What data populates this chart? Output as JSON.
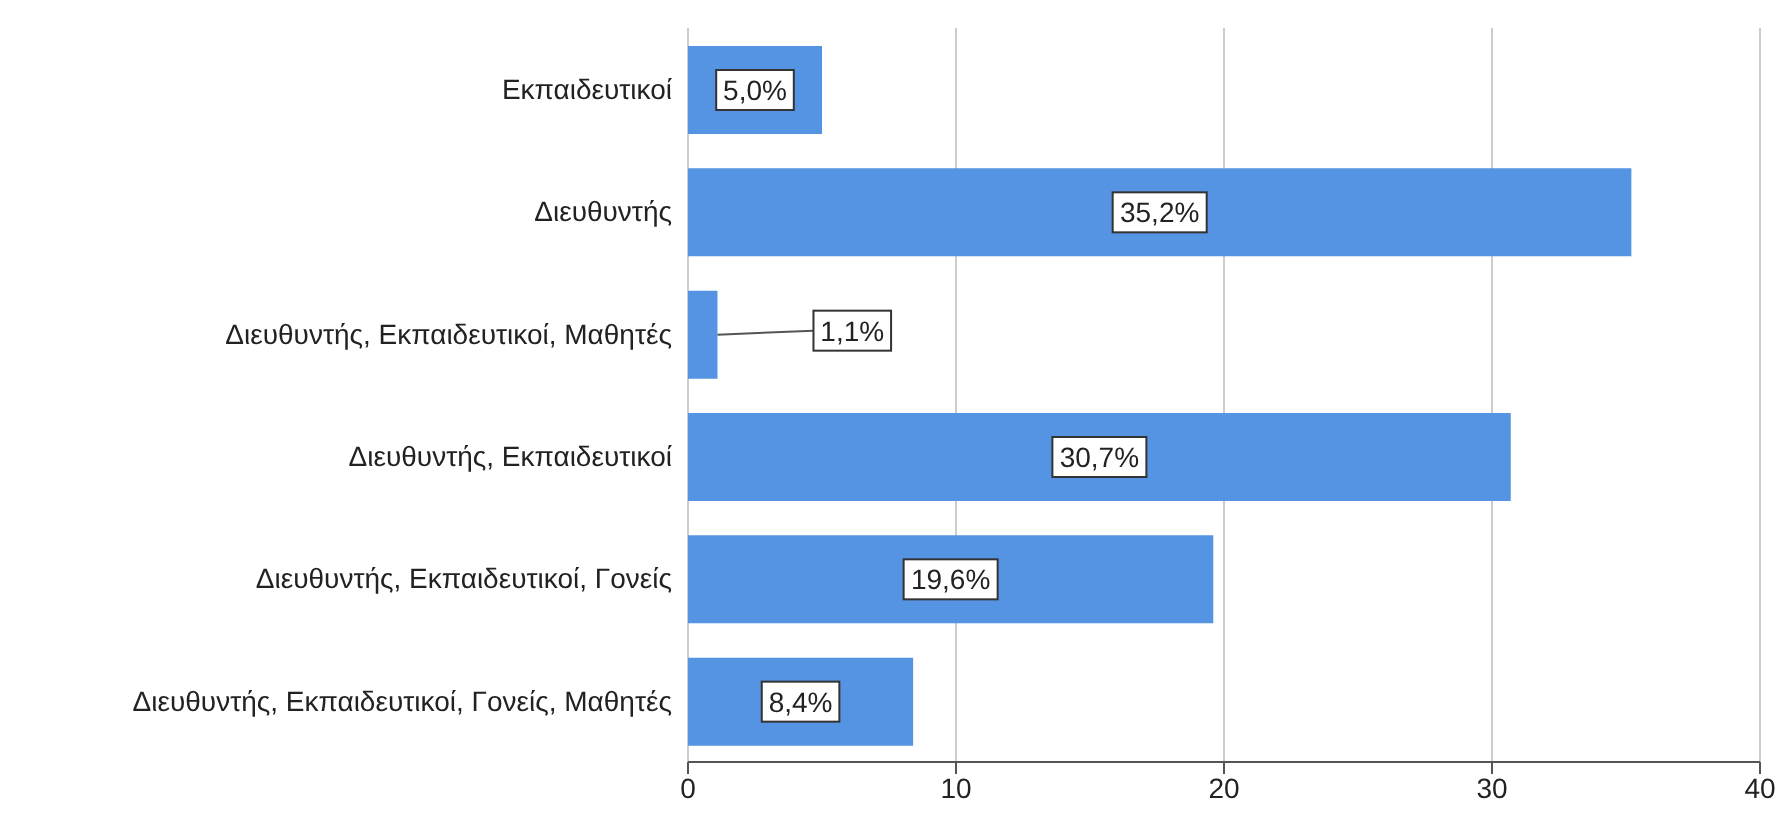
{
  "chart_data": {
    "type": "bar",
    "orientation": "horizontal",
    "categories": [
      "Εκπαιδευτικοί",
      "Διευθυντής",
      "Διευθυντής, Εκπαιδευτικοί, Μαθητές",
      "Διευθυντής, Εκπαιδευτικοί",
      "Διευθυντής, Εκπαιδευτικοί, Γονείς",
      "Διευθυντής, Εκπαιδευτικοί, Γονείς, Μαθητές"
    ],
    "values": [
      5.0,
      35.2,
      1.1,
      30.7,
      19.6,
      8.4
    ],
    "value_labels": [
      "5,0%",
      "35,2%",
      "1,1%",
      "30,7%",
      "19,6%",
      "8,4%"
    ],
    "color": "#5594e2",
    "xlim": [
      0,
      40
    ],
    "xticks": [
      0,
      10,
      20,
      30,
      40
    ],
    "grid": "x"
  }
}
